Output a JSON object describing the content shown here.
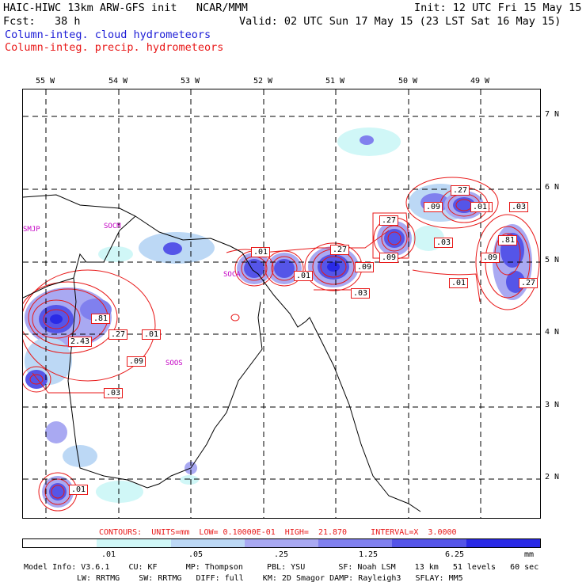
{
  "header": {
    "model_line": "HAIC-HIWC 13km ARW-GFS init   NCAR/MMM",
    "init_line": "Init: 12 UTC Fri 15 May 15",
    "fcst_line": "Fcst:   38 h",
    "valid_line": "Valid: 02 UTC Sun 17 May 15 (23 LST Sat 16 May 15)",
    "field1": "Column-integ. cloud hydrometeors",
    "field2": "Column-integ. precip. hydrometeors"
  },
  "axes": {
    "lon_labels": [
      "55 W",
      "54 W",
      "53 W",
      "52 W",
      "51 W",
      "50 W",
      "49 W"
    ],
    "lat_labels": [
      "7 N",
      "6 N",
      "5 N",
      "4 N",
      "3 N",
      "2 N"
    ]
  },
  "stations": [
    "SMJP",
    "SOCM",
    "SOCA",
    "SOOS"
  ],
  "contour_labels": [
    ".01",
    ".27",
    ".01",
    ".09",
    ".03",
    ".09",
    ".27",
    ".01",
    ".03",
    ".01",
    ".09",
    ".81",
    ".09",
    ".01",
    ".27",
    ".27",
    ".03",
    ".81",
    ".27",
    ".01",
    "2.43",
    ".09",
    ".03",
    ".01"
  ],
  "contour_info": "CONTOURS:  UNITS=mm  LOW= 0.10000E-01  HIGH=  21.870     INTERVAL=X  3.0000",
  "colorbar": {
    "ticks": [
      ".01",
      ".05",
      ".25",
      "1.25",
      "6.25"
    ],
    "units": "mm",
    "colors": [
      "#ffffff",
      "#d0f7f7",
      "#bcd8f5",
      "#a9a9f2",
      "#8080ee",
      "#5555e8",
      "#2a2ae6"
    ]
  },
  "footer": {
    "line1": "Model Info: V3.6.1    CU: KF      MP: Thompson     PBL: YSU       SF: Noah LSM    13 km   51 levels   60 sec",
    "line2": "LW: RRTMG    SW: RRTMG   DIFF: full    KM: 2D Smagor DAMP: Rayleigh3   SFLAY: MM5"
  }
}
